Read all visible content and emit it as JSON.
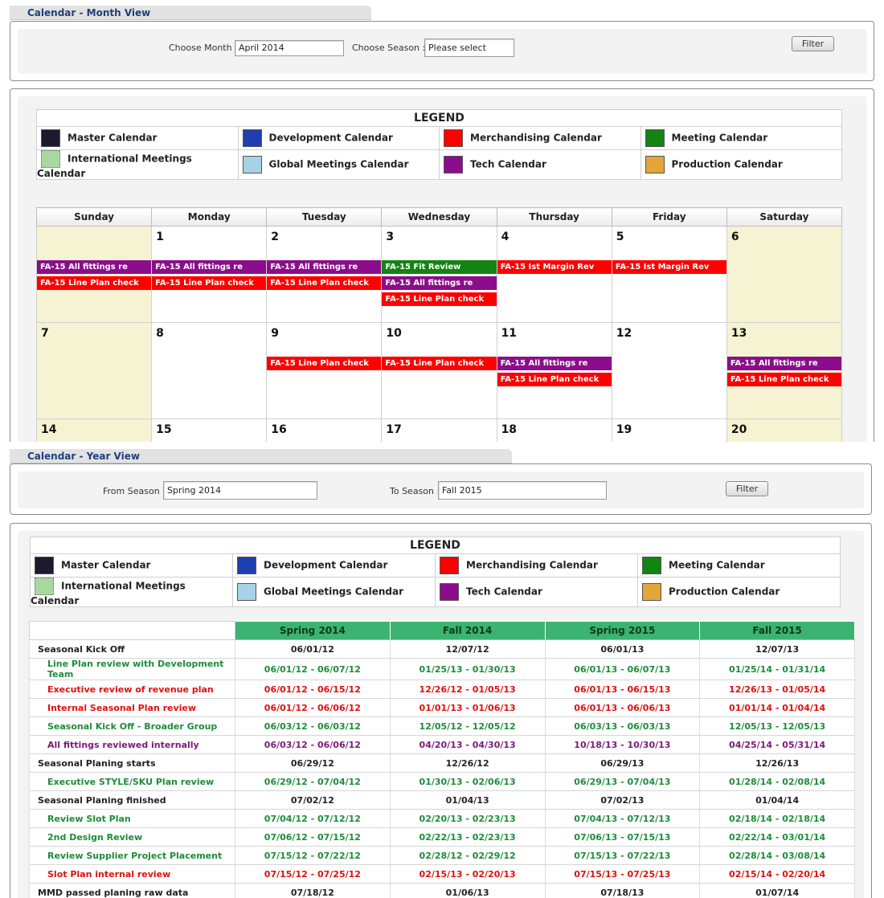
{
  "colors": {
    "master": "#1c1a2e",
    "development": "#1f3fae",
    "merchandising": "#ff0000",
    "meeting": "#128412",
    "intl_meetings": "#a8d8a0",
    "global_meetings": "#a8d2e8",
    "tech": "#8b0d8b",
    "production": "#e2a63a",
    "year_green": "#1e8c3a",
    "year_red": "#e01010",
    "year_purple": "#7a1a7a"
  },
  "month_view": {
    "title": "Calendar - Month View",
    "choose_month_label": "Choose Month :",
    "choose_month_value": "April 2014",
    "choose_season_label": "Choose Season :",
    "choose_season_value": "Please select",
    "filter_label": "Filter"
  },
  "legend": {
    "title": "LEGEND",
    "items": [
      {
        "label": "Master Calendar",
        "icon": "master-swatch"
      },
      {
        "label": "Development Calendar",
        "icon": "development-swatch"
      },
      {
        "label": "Merchandising Calendar",
        "icon": "merchandising-swatch"
      },
      {
        "label": "Meeting Calendar",
        "icon": "meeting-swatch"
      },
      {
        "label": "International Meetings Calendar",
        "icon": "intl-meetings-swatch"
      },
      {
        "label": "Global Meetings Calendar",
        "icon": "global-meetings-swatch"
      },
      {
        "label": "Tech Calendar",
        "icon": "tech-swatch"
      },
      {
        "label": "Production Calendar",
        "icon": "production-swatch"
      }
    ]
  },
  "calendar": {
    "weekdays": [
      "Sunday",
      "Monday",
      "Tuesday",
      "Wednesday",
      "Thursday",
      "Friday",
      "Saturday"
    ],
    "weeks": [
      [
        {
          "day": "",
          "weekend": true,
          "events": [
            {
              "text": "FA-15 All fittings re",
              "cal": "tech",
              "row": 2
            },
            {
              "text": "FA-15 Line Plan check",
              "cal": "merchandising",
              "row": 3
            }
          ]
        },
        {
          "day": "1",
          "weekend": false,
          "events": [
            {
              "text": "FA-15 All fittings re",
              "cal": "tech",
              "row": 2
            },
            {
              "text": "FA-15 Line Plan check",
              "cal": "merchandising",
              "row": 3
            }
          ]
        },
        {
          "day": "2",
          "weekend": false,
          "events": [
            {
              "text": "FA-15 All fittings re",
              "cal": "tech",
              "row": 2
            },
            {
              "text": "FA-15 Line Plan check",
              "cal": "merchandising",
              "row": 3
            }
          ]
        },
        {
          "day": "3",
          "weekend": false,
          "events": [
            {
              "text": "FA-15 Fit Review",
              "cal": "meeting",
              "row": 2
            },
            {
              "text": "FA-15 All fittings re",
              "cal": "tech",
              "row": 3
            },
            {
              "text": "FA-15 Line Plan check",
              "cal": "merchandising",
              "row": 4
            }
          ]
        },
        {
          "day": "4",
          "weekend": false,
          "events": [
            {
              "text": "FA-15 Ist Margin Rev",
              "cal": "merchandising",
              "row": 2
            }
          ]
        },
        {
          "day": "5",
          "weekend": false,
          "events": [
            {
              "text": "FA-15 Ist Margin Rev",
              "cal": "merchandising",
              "row": 2
            }
          ]
        },
        {
          "day": "6",
          "weekend": true,
          "events": []
        }
      ],
      [
        {
          "day": "7",
          "weekend": true,
          "events": []
        },
        {
          "day": "8",
          "weekend": false,
          "events": []
        },
        {
          "day": "9",
          "weekend": false,
          "events": [
            {
              "text": "FA-15 Line Plan check",
              "cal": "merchandising",
              "row": 2
            }
          ]
        },
        {
          "day": "10",
          "weekend": false,
          "events": [
            {
              "text": "FA-15 Line Plan check",
              "cal": "merchandising",
              "row": 2
            }
          ]
        },
        {
          "day": "11",
          "weekend": false,
          "events": [
            {
              "text": "FA-15 All fittings re",
              "cal": "tech",
              "row": 2
            },
            {
              "text": "FA-15 Line Plan check",
              "cal": "merchandising",
              "row": 3
            }
          ]
        },
        {
          "day": "12",
          "weekend": false,
          "events": []
        },
        {
          "day": "13",
          "weekend": true,
          "events": [
            {
              "text": "FA-15 All fittings re",
              "cal": "tech",
              "row": 2
            },
            {
              "text": "FA-15 Line Plan check",
              "cal": "merchandising",
              "row": 3
            }
          ]
        }
      ],
      [
        {
          "day": "14",
          "weekend": true,
          "events": []
        },
        {
          "day": "15",
          "weekend": false,
          "events": []
        },
        {
          "day": "16",
          "weekend": false,
          "events": []
        },
        {
          "day": "17",
          "weekend": false,
          "events": []
        },
        {
          "day": "18",
          "weekend": false,
          "events": []
        },
        {
          "day": "19",
          "weekend": false,
          "events": []
        },
        {
          "day": "20",
          "weekend": true,
          "events": []
        }
      ]
    ]
  },
  "year_view": {
    "title": "Calendar - Year View",
    "from_label": "From Season :",
    "from_value": "Spring 2014",
    "to_label": "To Season :",
    "to_value": "Fall 2015",
    "filter_label": "Filter"
  },
  "year_table": {
    "seasons": [
      "Spring 2014",
      "Fall 2014",
      "Spring 2015",
      "Fall 2015"
    ],
    "rows": [
      {
        "name": "Seasonal Kick Off",
        "type": "major",
        "color": "",
        "values": [
          "06/01/12",
          "12/07/12",
          "06/01/13",
          "12/07/13"
        ]
      },
      {
        "name": "Line Plan review with Development Team",
        "type": "sub",
        "color": "green",
        "values": [
          "06/01/12 - 06/07/12",
          "01/25/13 - 01/30/13",
          "06/01/13 - 06/07/13",
          "01/25/14 - 01/31/14"
        ]
      },
      {
        "name": "Executive review of revenue plan",
        "type": "sub",
        "color": "red",
        "values": [
          "06/01/12 - 06/15/12",
          "12/26/12 - 01/05/13",
          "06/01/13 - 06/15/13",
          "12/26/13 - 01/05/14"
        ]
      },
      {
        "name": "Internal Seasonal Plan review",
        "type": "sub",
        "color": "red",
        "values": [
          "06/01/12 - 06/06/12",
          "01/01/13 - 01/06/13",
          "06/01/13 - 06/06/13",
          "01/01/14 - 01/04/14"
        ]
      },
      {
        "name": "Seasonal Kick Off - Broader Group",
        "type": "sub",
        "color": "green",
        "values": [
          "06/03/12 - 06/03/12",
          "12/05/12 - 12/05/12",
          "06/03/13 - 06/03/13",
          "12/05/13 - 12/05/13"
        ]
      },
      {
        "name": "All fittings reviewed internally",
        "type": "sub",
        "color": "purple",
        "values": [
          "06/03/12 - 06/06/12",
          "04/20/13 - 04/30/13",
          "10/18/13 - 10/30/13",
          "04/25/14 - 05/31/14"
        ]
      },
      {
        "name": "Seasonal Planing starts",
        "type": "major",
        "color": "",
        "values": [
          "06/29/12",
          "12/26/12",
          "06/29/13",
          "12/26/13"
        ]
      },
      {
        "name": "Executive STYLE/SKU Plan review",
        "type": "sub",
        "color": "green",
        "values": [
          "06/29/12 - 07/04/12",
          "01/30/13 - 02/06/13",
          "06/29/13 - 07/04/13",
          "01/28/14 - 02/08/14"
        ]
      },
      {
        "name": "Seasonal Planing finished",
        "type": "major",
        "color": "",
        "values": [
          "07/02/12",
          "01/04/13",
          "07/02/13",
          "01/04/14"
        ]
      },
      {
        "name": "Review Slot Plan",
        "type": "sub",
        "color": "green",
        "values": [
          "07/04/12 - 07/12/12",
          "02/20/13 - 02/23/13",
          "07/04/13 - 07/12/13",
          "02/18/14 - 02/18/14"
        ]
      },
      {
        "name": "2nd Design Review",
        "type": "sub",
        "color": "green",
        "values": [
          "07/06/12 - 07/15/12",
          "02/22/13 - 02/23/13",
          "07/06/13 - 07/15/13",
          "02/22/14 - 03/01/14"
        ]
      },
      {
        "name": "Review Supplier Project Placement",
        "type": "sub",
        "color": "green",
        "values": [
          "07/15/12 - 07/22/12",
          "02/28/12 - 02/29/12",
          "07/15/13 - 07/22/13",
          "02/28/14 - 03/08/14"
        ]
      },
      {
        "name": "Slot Plan internal review",
        "type": "sub",
        "color": "red",
        "values": [
          "07/15/12 - 07/25/12",
          "02/15/13 - 02/20/13",
          "07/15/13 - 07/25/13",
          "02/15/14 - 02/20/14"
        ]
      },
      {
        "name": "MMD passed planing raw data",
        "type": "major",
        "color": "",
        "values": [
          "07/18/12",
          "01/06/13",
          "07/18/13",
          "01/07/14"
        ]
      }
    ]
  }
}
